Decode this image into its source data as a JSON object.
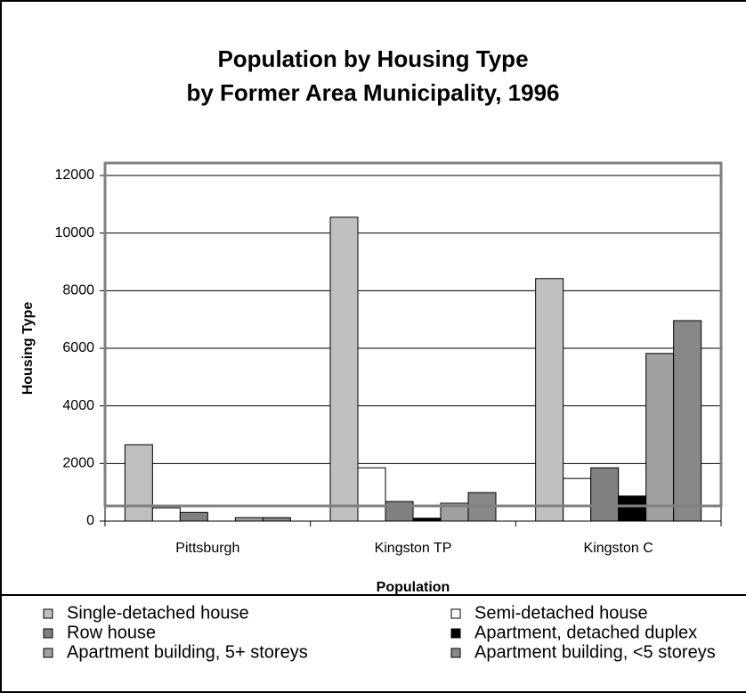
{
  "chart_data": {
    "type": "bar",
    "title": [
      "Population by Housing Type",
      "by Former Area Municipality, 1996"
    ],
    "x_label": "Population",
    "y_label": "Housing Type",
    "categories": [
      "Pittsburgh",
      "Kingston TP",
      "Kingston C"
    ],
    "series": [
      {
        "name": "Single-detached house",
        "color": "#c0c0c0",
        "values": [
          2650,
          10550,
          8420
        ]
      },
      {
        "name": "Semi-detached house",
        "color": "#ffffff",
        "values": [
          460,
          1850,
          1480
        ]
      },
      {
        "name": "Row house",
        "color": "#808080",
        "values": [
          300,
          680,
          1850
        ]
      },
      {
        "name": "Apartment, detached duplex",
        "color": "#000000",
        "values": [
          0,
          100,
          870
        ]
      },
      {
        "name": "Apartment building, 5+ storeys",
        "color": "#a0a0a0",
        "values": [
          120,
          620,
          5820
        ]
      },
      {
        "name": "Apartment building, <5 storeys",
        "color": "#888888",
        "values": [
          120,
          990,
          6960
        ]
      }
    ],
    "ylim": [
      0,
      12000
    ],
    "yticks": [
      0,
      2000,
      4000,
      6000,
      8000,
      10000,
      12000
    ],
    "grid": true
  }
}
